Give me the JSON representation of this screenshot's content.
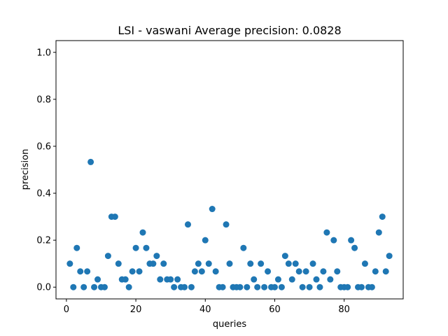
{
  "chart_data": {
    "type": "scatter",
    "title": "LSI - vaswani  Average precision: 0.0828",
    "xlabel": "queries",
    "ylabel": "precision",
    "xlim": [
      -3,
      97
    ],
    "ylim": [
      -0.05,
      1.05
    ],
    "xticks": [
      0,
      20,
      40,
      60,
      80
    ],
    "xtick_labels": [
      "0",
      "20",
      "40",
      "60",
      "80"
    ],
    "yticks": [
      0.0,
      0.2,
      0.4,
      0.6,
      0.8,
      1.0
    ],
    "ytick_labels": [
      "0.0",
      "0.2",
      "0.4",
      "0.6",
      "0.8",
      "1.0"
    ],
    "grid": false,
    "marker_color": "#1f77b4",
    "x": [
      1,
      2,
      3,
      4,
      5,
      6,
      7,
      8,
      9,
      10,
      11,
      12,
      13,
      14,
      15,
      16,
      17,
      18,
      19,
      20,
      21,
      22,
      23,
      24,
      25,
      26,
      27,
      28,
      29,
      30,
      31,
      32,
      33,
      34,
      35,
      36,
      37,
      38,
      39,
      40,
      41,
      42,
      43,
      44,
      45,
      46,
      47,
      48,
      49,
      50,
      51,
      52,
      53,
      54,
      55,
      56,
      57,
      58,
      59,
      60,
      61,
      62,
      63,
      64,
      65,
      66,
      67,
      68,
      69,
      70,
      71,
      72,
      73,
      74,
      75,
      76,
      77,
      78,
      79,
      80,
      81,
      82,
      83,
      84,
      85,
      86,
      87,
      88,
      89,
      90,
      91,
      92,
      93
    ],
    "y": [
      0.1,
      0.0,
      0.167,
      0.067,
      0.0,
      0.067,
      0.533,
      0.0,
      0.033,
      0.0,
      0.0,
      0.133,
      0.3,
      0.3,
      0.1,
      0.033,
      0.033,
      0.0,
      0.067,
      0.167,
      0.067,
      0.233,
      0.167,
      0.1,
      0.1,
      0.133,
      0.033,
      0.1,
      0.033,
      0.033,
      0.0,
      0.033,
      0.0,
      0.0,
      0.267,
      0.0,
      0.067,
      0.1,
      0.067,
      0.2,
      0.1,
      0.333,
      0.067,
      0.0,
      0.0,
      0.267,
      0.1,
      0.0,
      0.0,
      0.0,
      0.167,
      0.0,
      0.1,
      0.033,
      0.0,
      0.1,
      0.0,
      0.067,
      0.0,
      0.0,
      0.033,
      0.0,
      0.133,
      0.1,
      0.033,
      0.1,
      0.067,
      0.0,
      0.067,
      0.0,
      0.1,
      0.033,
      0.0,
      0.067,
      0.233,
      0.033,
      0.2,
      0.067,
      0.0,
      0.0,
      0.0,
      0.2,
      0.167,
      0.0,
      0.0,
      0.1,
      0.0,
      0.0,
      0.067,
      0.233,
      0.3,
      0.067,
      0.133
    ]
  }
}
